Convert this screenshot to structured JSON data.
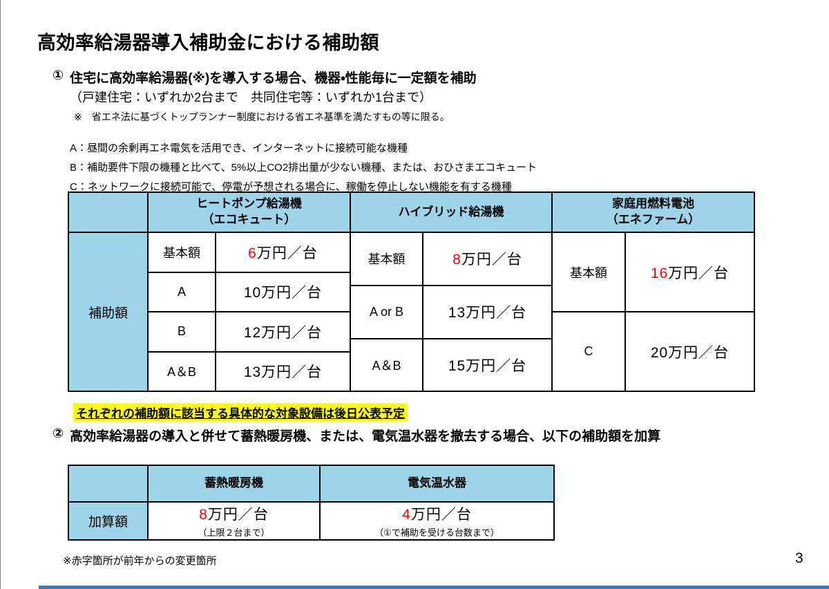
{
  "colors": {
    "accent_blue": "#9ED4EA",
    "red": "#FF0000",
    "highlight_yellow": "#FFFF00",
    "footer_bar_blue": "#3E7AC2",
    "border_black": "#000000"
  },
  "page": {
    "title": "高効率給湯器導入補助金における補助額",
    "page_number": "3",
    "footer_note": "※赤字箇所が前年からの変更箇所"
  },
  "section1": {
    "marker": "①",
    "heading": "住宅に高効率給湯器(※)を導入する場合、機器・性能毎に一定額を補助",
    "subheading": "（戸建住宅：いずれか2台まで　共同住宅等：いずれか1台まで）",
    "note": "※　省エネ法に基づくトップランナー制度における省エネ基準を満たすもの等に限る。",
    "definitions": [
      "A：昼間の余剰再エネ電気を活用でき、インターネットに接続可能な機種",
      "B：補助要件下限の機種と比べて、5%以上CO2排出量が少ない機種、または、おひさまエコキュート",
      "C：ネットワークに接続可能で、停電が予想される場合に、稼働を停止しない機能を有する機種"
    ],
    "highlight": "それぞれの補助額に該当する具体的な対象設備は後日公表予定"
  },
  "table1": {
    "row_header": "補助額",
    "columns": [
      {
        "header1": "ヒートポンプ給湯機",
        "header2": "（エコキュート）",
        "rows": [
          {
            "label": "基本額",
            "red": "6",
            "rest": "万円／台"
          },
          {
            "label": "A",
            "red": "",
            "rest": "10万円／台"
          },
          {
            "label": "B",
            "red": "",
            "rest": "12万円／台"
          },
          {
            "label": "A＆B",
            "red": "",
            "rest": "13万円／台"
          }
        ]
      },
      {
        "header1": "ハイブリッド給湯機",
        "header2": "",
        "rows": [
          {
            "label": "基本額",
            "red": "8",
            "rest": "万円／台"
          },
          {
            "label": "A or B",
            "red": "",
            "rest": "13万円／台"
          },
          {
            "label": "A＆B",
            "red": "",
            "rest": "15万円／台"
          }
        ]
      },
      {
        "header1": "家庭用燃料電池",
        "header2": "（エネファーム）",
        "rows": [
          {
            "label": "基本額",
            "red": "16",
            "rest": "万円／台"
          },
          {
            "label": "C",
            "red": "",
            "rest": "20万円／台"
          }
        ]
      }
    ]
  },
  "section2": {
    "marker": "②",
    "heading": "高効率給湯器の導入と併せて蓄熱暖房機、または、電気温水器を撤去する場合、以下の補助額を加算"
  },
  "table2": {
    "row_header": "加算額",
    "columns": [
      {
        "header": "蓄熱暖房機",
        "red": "8",
        "rest": "万円／台",
        "caption": "（上限２台まで）"
      },
      {
        "header": "電気温水器",
        "red": "4",
        "rest": "万円／台",
        "caption": "（①で補助を受ける台数まで）"
      }
    ]
  }
}
